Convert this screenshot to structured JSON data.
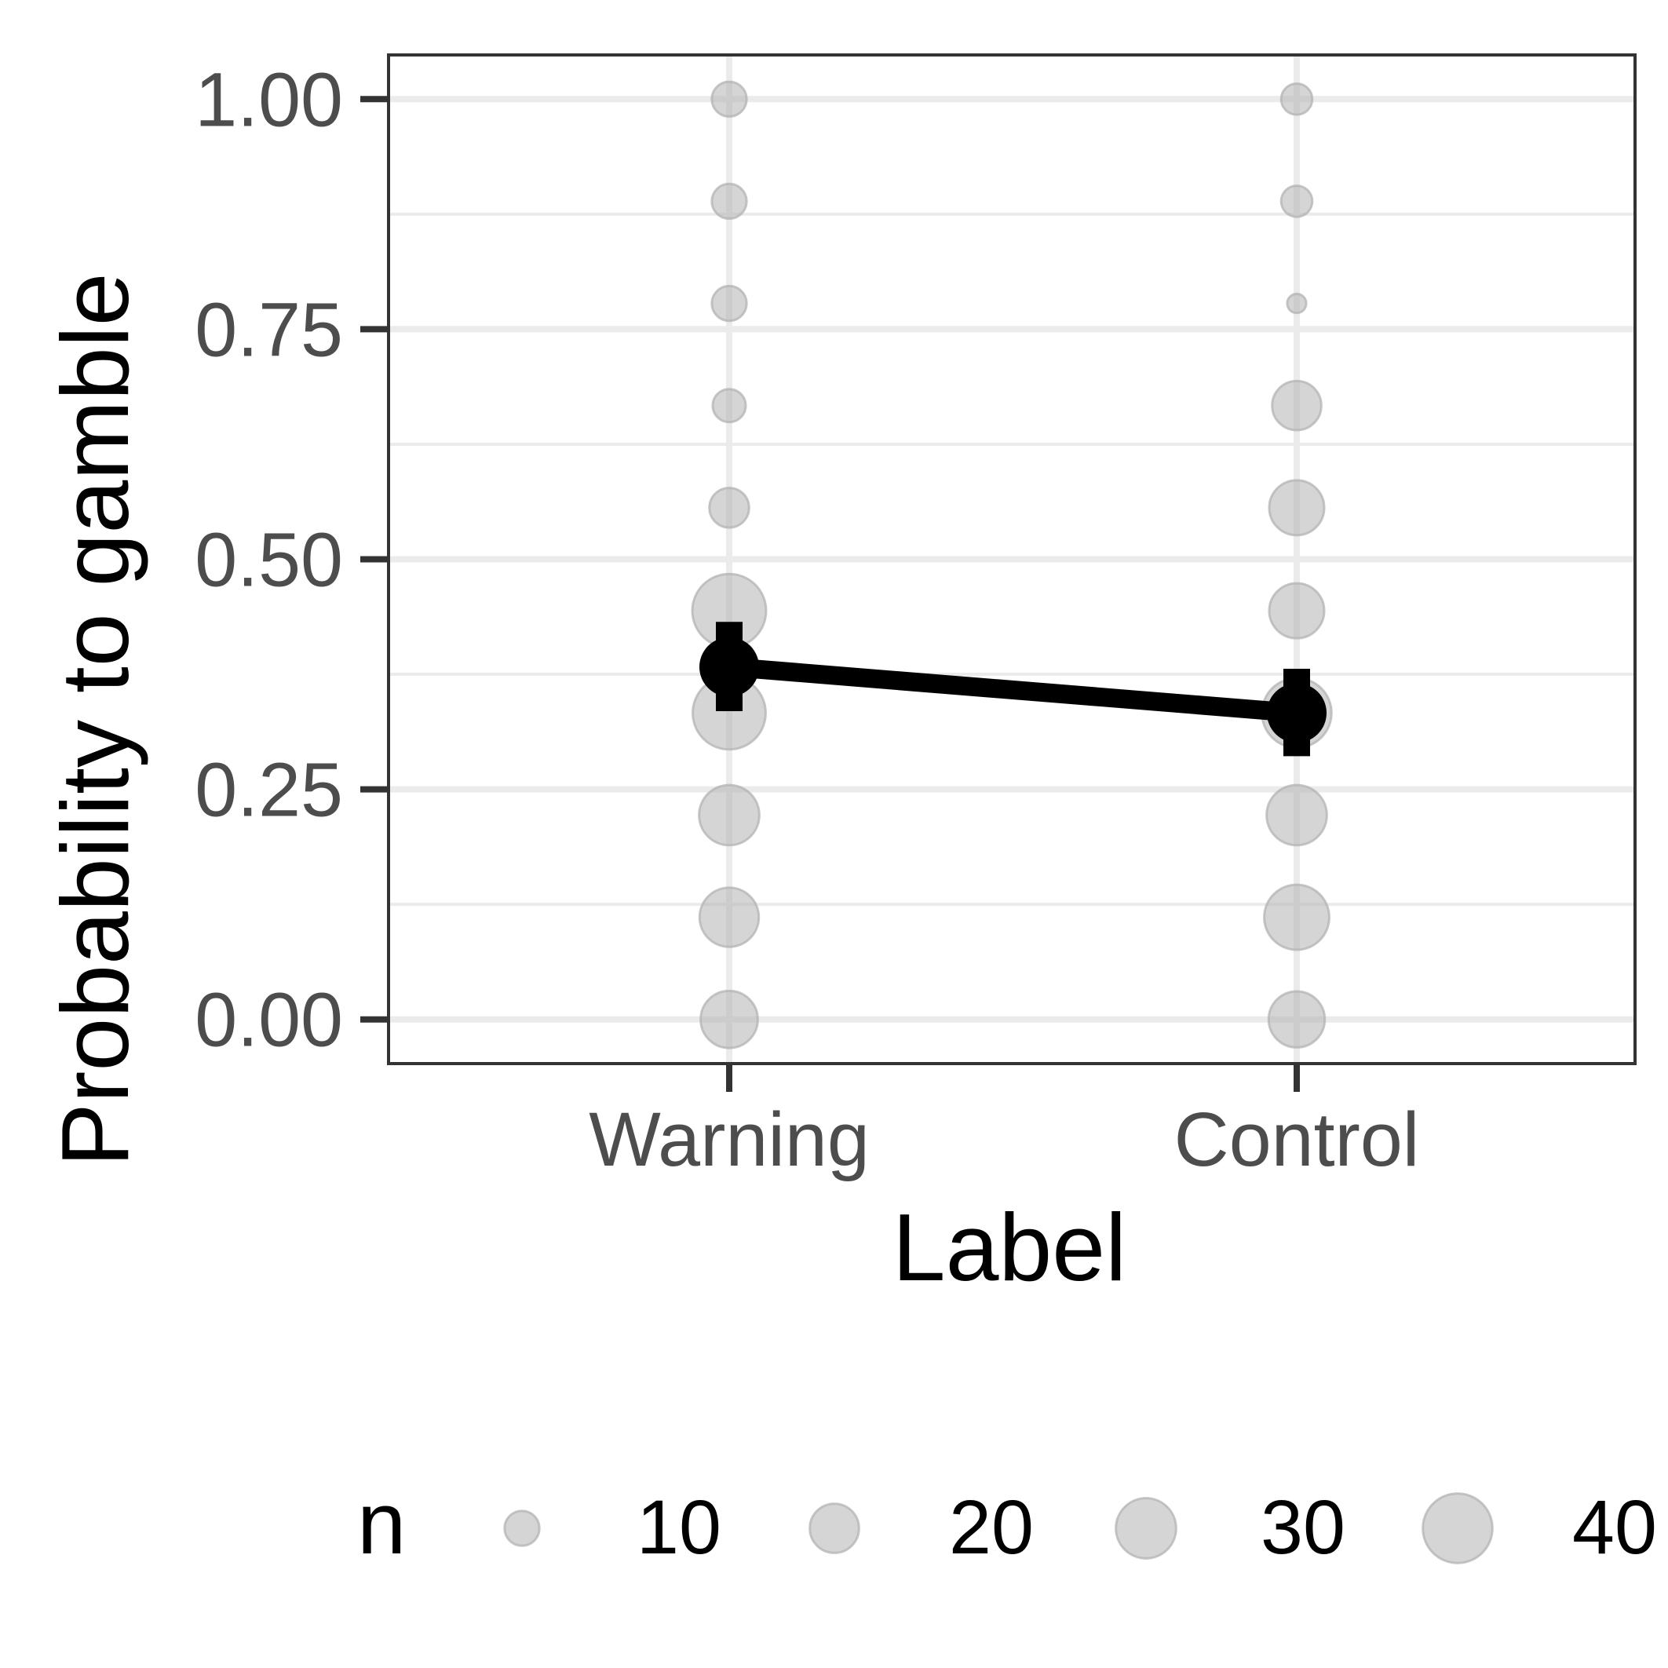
{
  "chart_data": {
    "type": "scatter",
    "xlabel": "Label",
    "ylabel": "Probability to gamble",
    "categories": [
      "Warning",
      "Control"
    ],
    "ylim": [
      -0.048,
      1.048
    ],
    "yticks": [
      "0.00",
      "0.25",
      "0.50",
      "0.75",
      "1.00"
    ],
    "ytick_values": [
      0,
      0.25,
      0.5,
      0.75,
      1
    ],
    "grid": true,
    "bubble_series": {
      "name": "n",
      "color": "#b3b3b3",
      "points": [
        {
          "x": "Warning",
          "y": 1.0,
          "n": 10
        },
        {
          "x": "Warning",
          "y": 0.889,
          "n": 10
        },
        {
          "x": "Warning",
          "y": 0.778,
          "n": 10
        },
        {
          "x": "Warning",
          "y": 0.667,
          "n": 9
        },
        {
          "x": "Warning",
          "y": 0.556,
          "n": 13
        },
        {
          "x": "Warning",
          "y": 0.444,
          "n": 45
        },
        {
          "x": "Warning",
          "y": 0.333,
          "n": 44
        },
        {
          "x": "Warning",
          "y": 0.222,
          "n": 30
        },
        {
          "x": "Warning",
          "y": 0.111,
          "n": 29
        },
        {
          "x": "Warning",
          "y": 0.0,
          "n": 27
        },
        {
          "x": "Control",
          "y": 1.0,
          "n": 8
        },
        {
          "x": "Control",
          "y": 0.889,
          "n": 8
        },
        {
          "x": "Control",
          "y": 0.778,
          "n": 3
        },
        {
          "x": "Control",
          "y": 0.667,
          "n": 20
        },
        {
          "x": "Control",
          "y": 0.556,
          "n": 25
        },
        {
          "x": "Control",
          "y": 0.444,
          "n": 25
        },
        {
          "x": "Control",
          "y": 0.333,
          "n": 40
        },
        {
          "x": "Control",
          "y": 0.222,
          "n": 30
        },
        {
          "x": "Control",
          "y": 0.111,
          "n": 35
        },
        {
          "x": "Control",
          "y": 0.0,
          "n": 26
        }
      ]
    },
    "mean_series": {
      "color": "#000000",
      "points": [
        {
          "x": "Warning",
          "y": 0.383,
          "ymin": 0.335,
          "ymax": 0.432
        },
        {
          "x": "Control",
          "y": 0.333,
          "ymin": 0.286,
          "ymax": 0.381
        }
      ]
    },
    "legend": {
      "title": "n",
      "position": "bottom",
      "items": [
        {
          "label": "10",
          "n": 10
        },
        {
          "label": "20",
          "n": 20
        },
        {
          "label": "30",
          "n": 30
        },
        {
          "label": "40",
          "n": 40
        }
      ]
    }
  }
}
